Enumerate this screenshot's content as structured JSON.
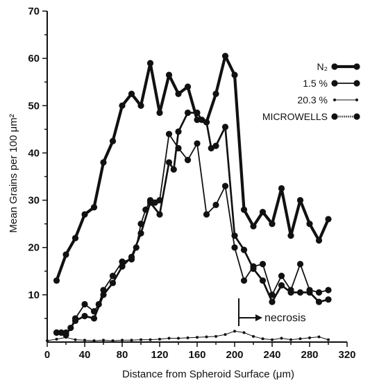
{
  "chart_data": {
    "type": "line",
    "title": "",
    "xlabel": "Distance from Spheroid Surface (μm)",
    "ylabel": "Mean Grains per 100 μm²",
    "xlim": [
      0,
      320
    ],
    "ylim": [
      0,
      70
    ],
    "x_ticks": [
      "0",
      "40",
      "80",
      "120",
      "160",
      "200",
      "240",
      "280",
      "320"
    ],
    "y_ticks": [
      "10",
      "20",
      "30",
      "40",
      "50",
      "60",
      "70"
    ],
    "grid": false,
    "legend_position": "top-right",
    "series": [
      {
        "name": "N₂",
        "style": "thick",
        "x": [
          10,
          20,
          30,
          40,
          50,
          60,
          70,
          80,
          90,
          100,
          110,
          120,
          130,
          140,
          150,
          160,
          170,
          180,
          190,
          200,
          210,
          220,
          230,
          240,
          250,
          260,
          270,
          280,
          290,
          300
        ],
        "y": [
          13,
          18.5,
          22,
          27,
          28.5,
          38,
          42.5,
          50,
          52.5,
          50,
          59,
          48.5,
          56.5,
          52.5,
          54,
          47,
          46.5,
          52.5,
          60.5,
          56.5,
          28,
          24.5,
          27.5,
          25,
          32.5,
          22.5,
          30,
          25,
          21.5,
          26
        ]
      },
      {
        "name": "1.5 %",
        "style": "medium",
        "x": [
          10,
          15,
          20,
          25,
          30,
          40,
          50,
          55,
          60,
          70,
          80,
          90,
          95,
          100,
          105,
          110,
          115,
          120,
          130,
          140,
          150,
          160,
          170,
          180,
          190,
          200,
          210,
          220,
          230,
          240,
          250,
          260,
          270,
          280,
          290,
          300
        ],
        "y": [
          2,
          2,
          2,
          3,
          5,
          8,
          6.5,
          8,
          11,
          14,
          17,
          17.5,
          20,
          25,
          28,
          30,
          29.5,
          30,
          44,
          41,
          38.5,
          42,
          27,
          29,
          33,
          20,
          13,
          16,
          16.5,
          10,
          14,
          11,
          16.5,
          11,
          10.5,
          11
        ]
      },
      {
        "name": "20.3 %",
        "style": "thin",
        "x": [
          0,
          10,
          20,
          30,
          40,
          50,
          60,
          70,
          80,
          90,
          100,
          110,
          120,
          130,
          140,
          150,
          160,
          170,
          180,
          190,
          200,
          210,
          220,
          230,
          240,
          250,
          260,
          270,
          280,
          290,
          300
        ],
        "y": [
          0.3,
          0.6,
          1,
          0.5,
          0.4,
          0.3,
          0.4,
          0.3,
          0.4,
          0.4,
          0.5,
          0.5,
          0.6,
          0.8,
          0.8,
          0.9,
          1,
          1.1,
          1.2,
          1.6,
          2.3,
          2,
          1.2,
          0.7,
          0.5,
          0.8,
          0.5,
          0.7,
          0.9,
          1.1,
          0.5
        ]
      },
      {
        "name": "MICROWELLS",
        "style": "dotted",
        "x": [
          10,
          15,
          20,
          30,
          40,
          50,
          60,
          70,
          80,
          90,
          100,
          110,
          120,
          130,
          135,
          140,
          150,
          160,
          165,
          170,
          175,
          180,
          190,
          200,
          210,
          220,
          230,
          240,
          250,
          260,
          270,
          280,
          290,
          300
        ],
        "y": [
          2,
          2,
          1.5,
          4.5,
          5.5,
          5,
          10,
          12.5,
          16,
          18,
          23,
          29.5,
          27,
          38,
          36.5,
          44.5,
          48.5,
          48.5,
          47,
          46.5,
          41,
          41.5,
          45.5,
          22.5,
          19.5,
          15.5,
          13,
          8.5,
          12,
          10.5,
          10.5,
          10.5,
          8.5,
          9
        ]
      }
    ],
    "annotations": [
      {
        "text": "necrosis",
        "at_x": 200,
        "at_y": 7
      }
    ]
  }
}
